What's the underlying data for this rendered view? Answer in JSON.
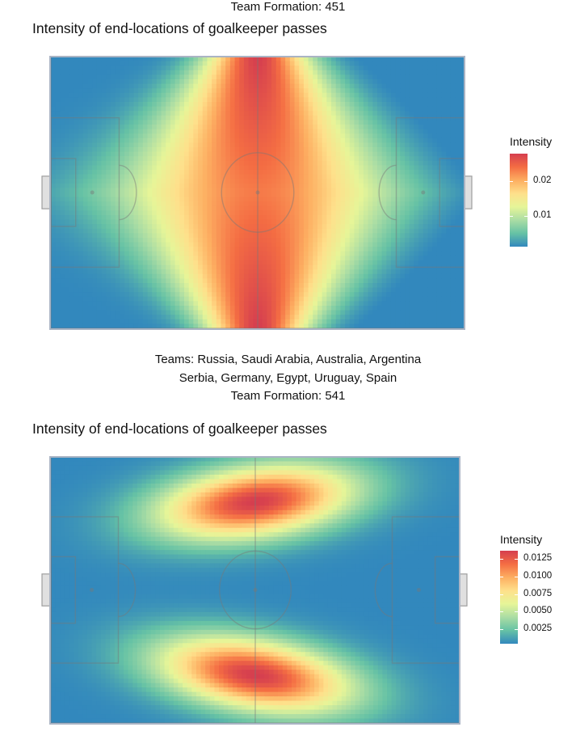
{
  "header_top": {
    "formation": "Team Formation: 451"
  },
  "chart1_title": "Intensity of end-locations of goalkeeper passes",
  "teams_caption": {
    "line1": "Teams: Russia, Saudi Arabia, Australia, Argentina",
    "line2": "Serbia, Germany, Egypt, Uruguay, Spain",
    "line3": "Team Formation: 541"
  },
  "chart2_title": "Intensity of end-locations of goalkeeper passes",
  "palette": [
    "#3288bd",
    "#66c2a5",
    "#abdda4",
    "#e6f598",
    "#fee08b",
    "#fdae61",
    "#f46d43",
    "#d53e4f"
  ],
  "chart_data": [
    {
      "type": "heatmap",
      "title": "Intensity of end-locations of goalkeeper passes",
      "subtitle": "Team Formation: 451",
      "legend": {
        "title": "Intensity",
        "ticks": [
          {
            "value": 0.02,
            "label": "0.02"
          },
          {
            "value": 0.01,
            "label": "0.01"
          }
        ],
        "min": 0.001,
        "max": 0.028,
        "placement": "right"
      },
      "field": {
        "x_range": [
          0,
          120
        ],
        "y_range": [
          0,
          80
        ]
      },
      "density_peaks": [
        {
          "x": 60,
          "y": 80,
          "value": 0.028
        },
        {
          "x": 60,
          "y": 0,
          "value": 0.028
        }
      ],
      "density_low": [
        {
          "x": 120,
          "y": 40,
          "value": 0.001
        }
      ]
    },
    {
      "type": "heatmap",
      "title": "Intensity of end-locations of goalkeeper passes",
      "subtitle": "Team Formation: 541",
      "legend": {
        "title": "Intensity",
        "ticks": [
          {
            "value": 0.0125,
            "label": "0.0125"
          },
          {
            "value": 0.01,
            "label": "0.0100"
          },
          {
            "value": 0.0075,
            "label": "0.0075"
          },
          {
            "value": 0.005,
            "label": "0.0050"
          },
          {
            "value": 0.0025,
            "label": "0.0025"
          }
        ],
        "min": 0.0004,
        "max": 0.0137,
        "placement": "right"
      },
      "field": {
        "x_range": [
          0,
          120
        ],
        "y_range": [
          0,
          80
        ]
      },
      "density_peaks": [
        {
          "x": 60,
          "y": 68,
          "value": 0.0137
        },
        {
          "x": 60,
          "y": 13,
          "value": 0.0137
        }
      ]
    }
  ]
}
